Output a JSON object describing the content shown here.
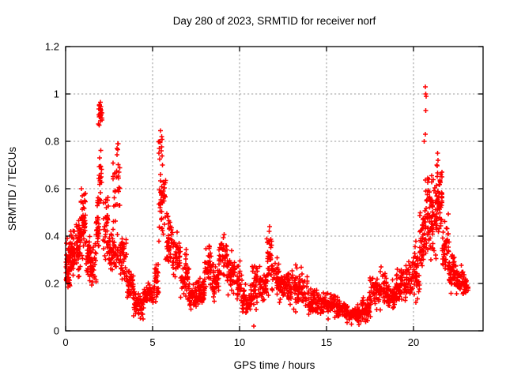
{
  "page": {
    "background": "#ffffff"
  },
  "chart_data": {
    "type": "scatter",
    "title": "Day 280 of 2023, SRMTID for receiver norf",
    "xlabel": "GPS time / hours",
    "ylabel": "SRMTID / TECUs",
    "xlim": [
      0,
      24
    ],
    "ylim": [
      0,
      1.2
    ],
    "xticks": {
      "values": [
        0,
        5,
        10,
        15,
        20
      ],
      "labels": [
        "0",
        "5",
        "10",
        "15",
        "20"
      ]
    },
    "yticks": {
      "values": [
        0,
        0.2,
        0.4,
        0.6,
        0.8,
        1.0,
        1.2
      ],
      "labels": [
        "0",
        "0.2",
        "0.4",
        "0.6",
        "0.8",
        "1",
        "1.2"
      ]
    },
    "grid": {
      "show": true,
      "color": "#9e9e9e",
      "style": "dashed"
    },
    "legend": "none",
    "marker": {
      "shape": "plus",
      "color": "#ff0000",
      "size": 6
    },
    "frame_color": "#000000",
    "text_color": "#000000",
    "series": [
      {
        "name": "SRMTID",
        "envelope_bins": [
          [
            0.02,
            0.25,
            55,
            0.17,
            0.4,
            0.45
          ],
          [
            0.25,
            0.55,
            50,
            0.2,
            0.44,
            0.5
          ],
          [
            0.55,
            0.85,
            45,
            0.22,
            0.5,
            0.5
          ],
          [
            0.85,
            1.15,
            45,
            0.28,
            0.6,
            0.55
          ],
          [
            1.15,
            1.45,
            40,
            0.2,
            0.42,
            0.5
          ],
          [
            1.45,
            1.75,
            35,
            0.18,
            0.4,
            0.45
          ],
          [
            1.75,
            1.95,
            30,
            0.28,
            0.62,
            0.5
          ],
          [
            1.88,
            2.12,
            22,
            0.82,
            0.97,
            0.6
          ],
          [
            1.9,
            2.15,
            20,
            0.45,
            0.82,
            0.5
          ],
          [
            2.15,
            2.45,
            35,
            0.28,
            0.62,
            0.45
          ],
          [
            2.45,
            2.72,
            35,
            0.22,
            0.45,
            0.5
          ],
          [
            2.72,
            3.12,
            30,
            0.42,
            0.79,
            0.55
          ],
          [
            2.75,
            3.15,
            25,
            0.24,
            0.42,
            0.5
          ],
          [
            3.12,
            3.5,
            40,
            0.2,
            0.45,
            0.45
          ],
          [
            3.5,
            3.9,
            42,
            0.12,
            0.28,
            0.5
          ],
          [
            3.9,
            4.5,
            55,
            0.05,
            0.18,
            0.5
          ],
          [
            4.5,
            5.1,
            50,
            0.09,
            0.22,
            0.5
          ],
          [
            5.1,
            5.35,
            28,
            0.12,
            0.3,
            0.5
          ],
          [
            5.35,
            5.75,
            45,
            0.3,
            0.72,
            0.55
          ],
          [
            5.35,
            5.6,
            8,
            0.72,
            0.85,
            0.5
          ],
          [
            5.75,
            6.1,
            40,
            0.25,
            0.52,
            0.5
          ],
          [
            6.1,
            6.6,
            45,
            0.2,
            0.46,
            0.45
          ],
          [
            6.6,
            7.1,
            45,
            0.12,
            0.35,
            0.45
          ],
          [
            7.1,
            7.6,
            50,
            0.07,
            0.22,
            0.5
          ],
          [
            7.6,
            8.0,
            45,
            0.08,
            0.25,
            0.5
          ],
          [
            8.0,
            8.4,
            40,
            0.14,
            0.38,
            0.5
          ],
          [
            8.4,
            8.8,
            40,
            0.12,
            0.3,
            0.5
          ],
          [
            8.8,
            9.3,
            45,
            0.18,
            0.42,
            0.5
          ],
          [
            9.3,
            9.8,
            45,
            0.14,
            0.38,
            0.45
          ],
          [
            9.8,
            10.15,
            30,
            0.1,
            0.32,
            0.45
          ],
          [
            10.15,
            10.7,
            50,
            0.06,
            0.2,
            0.5
          ],
          [
            10.7,
            11.1,
            40,
            0.08,
            0.35,
            0.45
          ],
          [
            11.1,
            11.55,
            40,
            0.1,
            0.3,
            0.45
          ],
          [
            11.55,
            11.85,
            35,
            0.15,
            0.44,
            0.5
          ],
          [
            11.85,
            12.3,
            40,
            0.12,
            0.35,
            0.45
          ],
          [
            12.3,
            12.8,
            45,
            0.1,
            0.28,
            0.5
          ],
          [
            12.8,
            13.3,
            45,
            0.08,
            0.3,
            0.45
          ],
          [
            13.3,
            13.9,
            50,
            0.08,
            0.28,
            0.45
          ],
          [
            13.9,
            14.45,
            50,
            0.06,
            0.2,
            0.5
          ],
          [
            14.45,
            15.05,
            55,
            0.05,
            0.18,
            0.5
          ],
          [
            15.05,
            15.65,
            55,
            0.05,
            0.18,
            0.45
          ],
          [
            15.65,
            16.25,
            55,
            0.03,
            0.14,
            0.5
          ],
          [
            16.25,
            16.95,
            60,
            0.02,
            0.12,
            0.5
          ],
          [
            16.95,
            17.45,
            50,
            0.03,
            0.15,
            0.5
          ],
          [
            17.45,
            17.95,
            45,
            0.06,
            0.27,
            0.45
          ],
          [
            17.95,
            18.45,
            45,
            0.08,
            0.27,
            0.45
          ],
          [
            18.45,
            18.95,
            45,
            0.08,
            0.22,
            0.5
          ],
          [
            18.95,
            19.45,
            45,
            0.1,
            0.29,
            0.5
          ],
          [
            19.45,
            19.95,
            45,
            0.1,
            0.32,
            0.5
          ],
          [
            19.95,
            20.35,
            45,
            0.12,
            0.4,
            0.45
          ],
          [
            20.35,
            20.65,
            40,
            0.2,
            0.55,
            0.5
          ],
          [
            20.65,
            21.05,
            55,
            0.3,
            0.75,
            0.4
          ],
          [
            21.05,
            21.35,
            45,
            0.3,
            0.66,
            0.5
          ],
          [
            21.35,
            21.65,
            45,
            0.35,
            0.74,
            0.5
          ],
          [
            21.65,
            22.05,
            45,
            0.24,
            0.5,
            0.45
          ],
          [
            22.05,
            22.45,
            45,
            0.15,
            0.35,
            0.5
          ],
          [
            22.45,
            22.85,
            40,
            0.14,
            0.28,
            0.5
          ],
          [
            22.85,
            23.15,
            25,
            0.14,
            0.25,
            0.5
          ]
        ],
        "outliers": [
          [
            20.68,
            1.03
          ],
          [
            20.7,
            1.0
          ],
          [
            20.73,
            0.99
          ],
          [
            20.7,
            0.93
          ],
          [
            20.68,
            0.83
          ],
          [
            20.62,
            0.8
          ],
          [
            21.38,
            0.75
          ],
          [
            21.42,
            0.72
          ],
          [
            21.33,
            0.7
          ],
          [
            2.0,
            0.965
          ],
          [
            1.96,
            0.95
          ],
          [
            2.03,
            0.93
          ],
          [
            3.0,
            0.79
          ],
          [
            2.96,
            0.77
          ],
          [
            5.45,
            0.845
          ],
          [
            5.52,
            0.82
          ],
          [
            5.42,
            0.8
          ],
          [
            5.5,
            0.76
          ],
          [
            5.57,
            0.7
          ],
          [
            0.92,
            0.6
          ],
          [
            0.95,
            0.57
          ],
          [
            10.82,
            0.02
          ],
          [
            11.72,
            0.44
          ],
          [
            11.7,
            0.42
          ],
          [
            0.3,
            0.42
          ],
          [
            0.05,
            0.37
          ]
        ]
      }
    ]
  }
}
